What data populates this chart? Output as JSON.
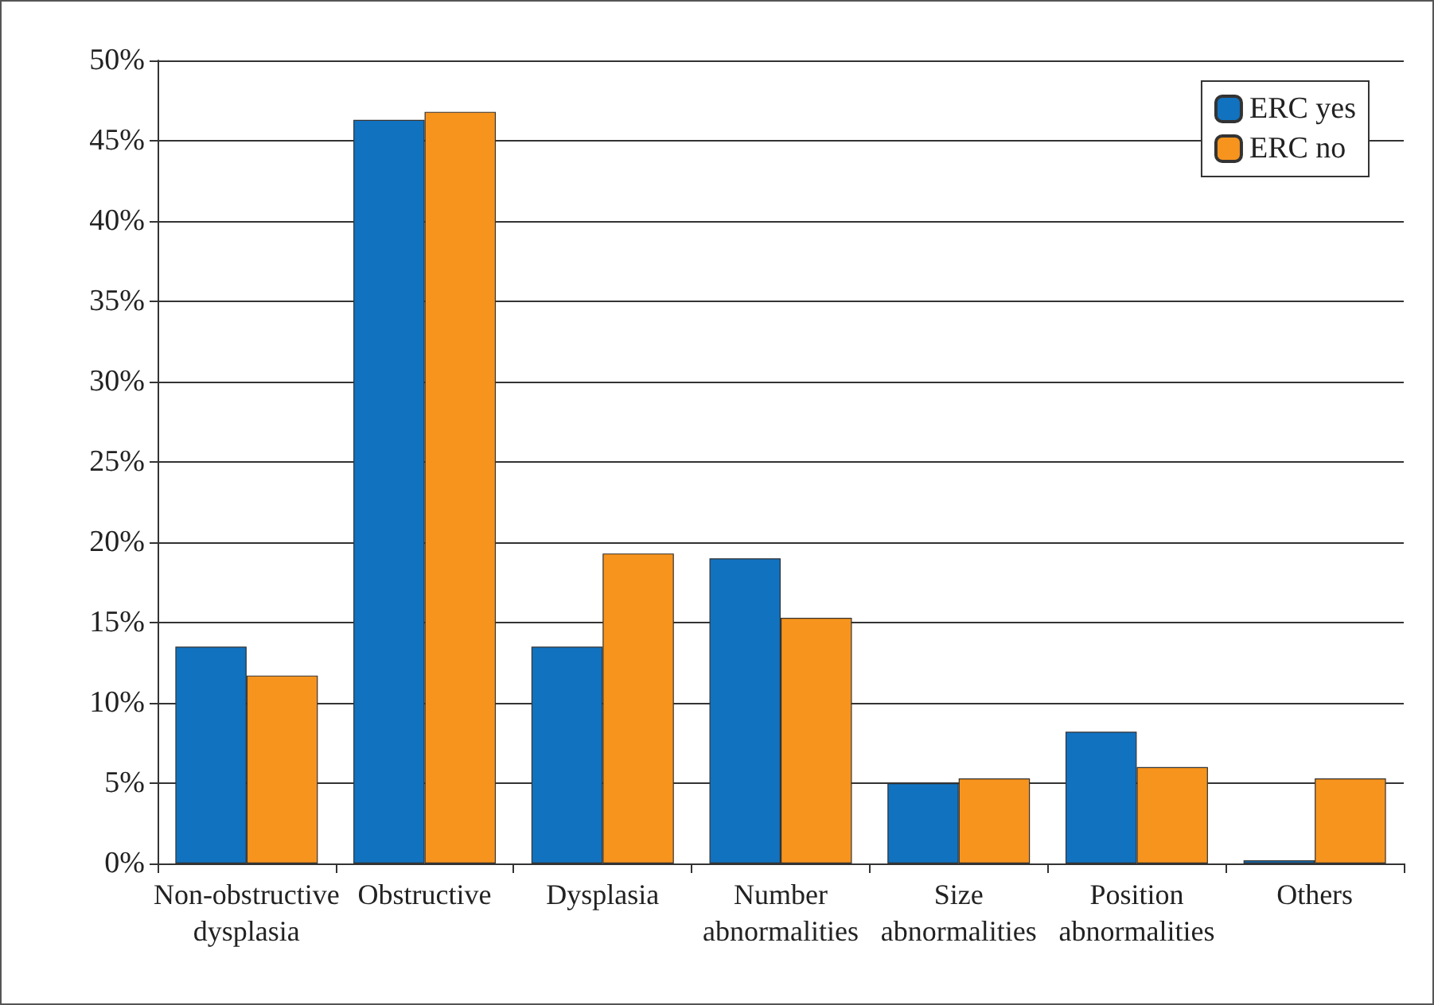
{
  "chart_data": {
    "type": "bar",
    "categories": [
      "Non-obstructive\ndysplasia",
      "Obstructive",
      "Dysplasia",
      "Number\nabnormalities",
      "Size\nabnormalities",
      "Position\nabnormalities",
      "Others"
    ],
    "series": [
      {
        "name": "ERC yes",
        "color": "#1172c0",
        "values": [
          13.5,
          46.3,
          13.5,
          19.0,
          5.0,
          8.2,
          0.2
        ]
      },
      {
        "name": "ERC no",
        "color": "#f7941d",
        "values": [
          11.7,
          46.8,
          19.3,
          15.3,
          5.3,
          6.0,
          5.3
        ]
      }
    ],
    "ylim": [
      0,
      50
    ],
    "yticks": [
      {
        "value": 0,
        "label": "0%"
      },
      {
        "value": 5,
        "label": "5%"
      },
      {
        "value": 10,
        "label": "10%"
      },
      {
        "value": 15,
        "label": "15%"
      },
      {
        "value": 20,
        "label": "20%"
      },
      {
        "value": 25,
        "label": "25%"
      },
      {
        "value": 30,
        "label": "30%"
      },
      {
        "value": 35,
        "label": "35%"
      },
      {
        "value": 40,
        "label": "40%"
      },
      {
        "value": 45,
        "label": "45%"
      },
      {
        "value": 50,
        "label": "50%"
      }
    ],
    "grid": "y",
    "legend": "top right"
  }
}
